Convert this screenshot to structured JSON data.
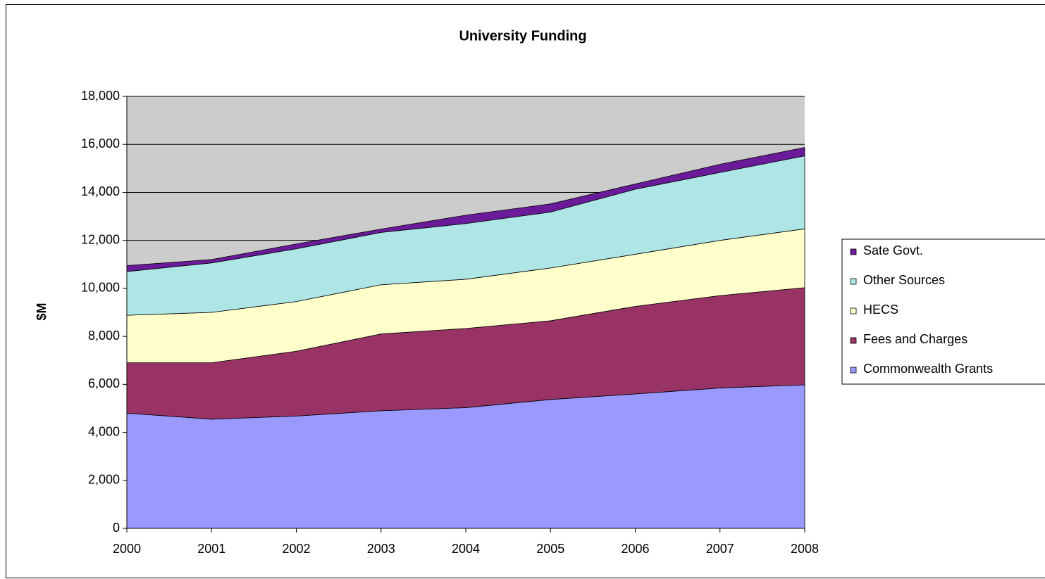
{
  "chart_data": {
    "type": "area",
    "stacked": true,
    "title": "University Funding",
    "y_label": "$M",
    "x": [
      2000,
      2001,
      2002,
      2003,
      2004,
      2005,
      2006,
      2007,
      2008
    ],
    "xlim": [
      2000,
      2008
    ],
    "xticks": [
      2000,
      2001,
      2002,
      2003,
      2004,
      2005,
      2006,
      2007,
      2008
    ],
    "ylim": [
      0,
      18000
    ],
    "yticks": [
      0,
      {
        "value": 2000,
        "label": "2,000"
      },
      {
        "value": 4000,
        "label": "4,000"
      },
      {
        "value": 6000,
        "label": "6,000"
      },
      {
        "value": 8000,
        "label": "8,000"
      },
      {
        "value": 10000,
        "label": "10,000"
      },
      {
        "value": 12000,
        "label": "12,000"
      },
      {
        "value": 14000,
        "label": "14,000"
      },
      {
        "value": 16000,
        "label": "16,000"
      },
      {
        "value": 18000,
        "label": "18,000"
      }
    ],
    "grid": true,
    "legend": "right",
    "series": [
      {
        "name": "Commonwealth Grants",
        "color": "#9999ff",
        "values": [
          4800,
          4550,
          4680,
          4900,
          5030,
          5370,
          5600,
          5850,
          5980
        ]
      },
      {
        "name": "Fees and Charges",
        "color": "#993366",
        "values": [
          2100,
          2350,
          2700,
          3200,
          3300,
          3280,
          3650,
          3850,
          4050
        ]
      },
      {
        "name": "HECS",
        "color": "#ffffcc",
        "values": [
          1980,
          2100,
          2070,
          2050,
          2050,
          2200,
          2170,
          2300,
          2450
        ]
      },
      {
        "name": "Other Sources",
        "color": "#aee6e6",
        "values": [
          1820,
          2060,
          2200,
          2180,
          2320,
          2330,
          2710,
          2830,
          3040
        ]
      },
      {
        "name": "Sate Govt.",
        "color": "#6a1b9a",
        "values": [
          250,
          140,
          200,
          140,
          350,
          340,
          220,
          340,
          350
        ]
      }
    ]
  }
}
